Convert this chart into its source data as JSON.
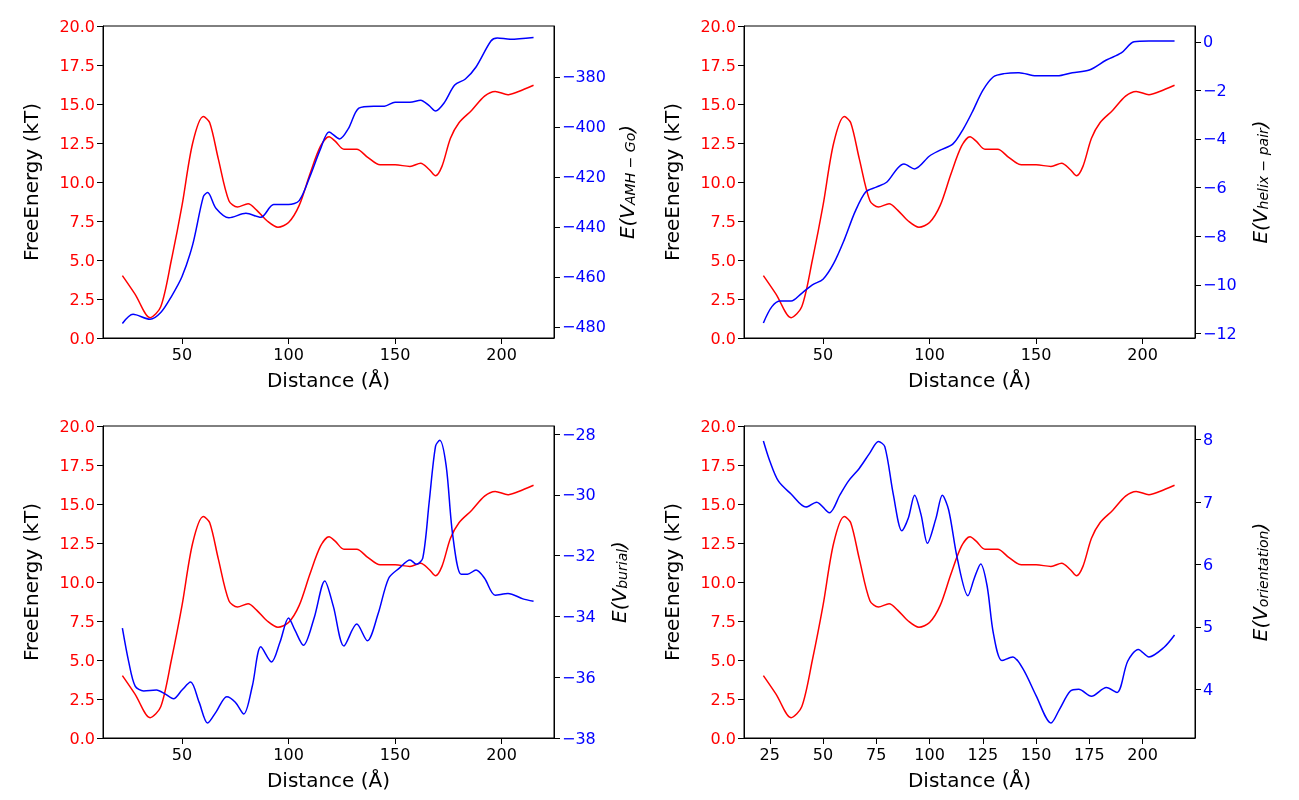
{
  "chart_data": [
    {
      "type": "line",
      "xlabel": "Distance (Å)",
      "ylabel": "FreeEnergy (kT)",
      "y2label": "E(V$_{AMH − Go}$)",
      "xlim": [
        12.9,
        224.6
      ],
      "xticks": [
        50,
        100,
        150,
        200
      ],
      "ylim": [
        0,
        20
      ],
      "yticks": [
        {
          "value": 0,
          "label": "0.0"
        },
        {
          "value": 2.5,
          "label": "2.5"
        },
        {
          "value": 5,
          "label": "5.0"
        },
        {
          "value": 7.5,
          "label": "7.5"
        },
        {
          "value": 10,
          "label": "10.0"
        },
        {
          "value": 12.5,
          "label": "12.5"
        },
        {
          "value": 15,
          "label": "15.0"
        },
        {
          "value": 17.5,
          "label": "17.5"
        },
        {
          "value": 20,
          "label": "20.0"
        }
      ],
      "y2lim": [
        -484.5,
        -359.6
      ],
      "y2ticks": [
        {
          "value": -480,
          "label": "−480"
        },
        {
          "value": -460,
          "label": "−460"
        },
        {
          "value": -440,
          "label": "−440"
        },
        {
          "value": -420,
          "label": "−420"
        },
        {
          "value": -400,
          "label": "−400"
        },
        {
          "value": -380,
          "label": "−380"
        }
      ],
      "series": [
        {
          "color": "#ff0000",
          "x": [
            22,
            28,
            35,
            40,
            45,
            50,
            55,
            60,
            63,
            67,
            72,
            76,
            81,
            85,
            90,
            95,
            100,
            105,
            110,
            115,
            119,
            122,
            126,
            132,
            137,
            143,
            150,
            157,
            162,
            166,
            169,
            172,
            176,
            180,
            186,
            192,
            197,
            203,
            208,
            215
          ],
          "values": [
            4.0,
            2.8,
            1.3,
            2.0,
            5.0,
            8.5,
            12.5,
            14.2,
            13.8,
            11.5,
            8.8,
            8.4,
            8.6,
            8.2,
            7.5,
            7.1,
            7.4,
            8.5,
            10.5,
            12.3,
            12.9,
            12.6,
            12.1,
            12.1,
            11.6,
            11.1,
            11.1,
            11.0,
            11.2,
            10.8,
            10.4,
            11.0,
            12.8,
            13.8,
            14.6,
            15.5,
            15.8,
            15.6,
            15.8,
            16.2
          ]
        },
        {
          "color": "#0000ff",
          "axis": "y2",
          "x": [
            22,
            27,
            35,
            40,
            45,
            50,
            55,
            60,
            62,
            66,
            72,
            80,
            87,
            93,
            100,
            105,
            110,
            115,
            119,
            124,
            128,
            133,
            140,
            145,
            150,
            157,
            162,
            166,
            169,
            173,
            178,
            183,
            188,
            195,
            198,
            204,
            215
          ],
          "values": [
            -478.7,
            -475,
            -477,
            -474.3,
            -467.9,
            -459.9,
            -447.1,
            -427.9,
            -426.3,
            -432.7,
            -436.4,
            -434.6,
            -436.2,
            -431.1,
            -431.1,
            -429.5,
            -419.9,
            -408.8,
            -402,
            -404.8,
            -400.8,
            -392.5,
            -391.7,
            -391.7,
            -390.1,
            -390.1,
            -389.3,
            -391.5,
            -393.6,
            -390.4,
            -383.2,
            -380.8,
            -376,
            -365.6,
            -364.4,
            -364.9,
            -364.2
          ]
        }
      ]
    },
    {
      "type": "line",
      "xlabel": "Distance (Å)",
      "ylabel": "FreeEnergy (kT)",
      "y2label": "E(V$_{helix − pair}$)",
      "xlim": [
        12.9,
        224.6
      ],
      "xticks": [
        50,
        100,
        150,
        200
      ],
      "ylim": [
        0,
        20
      ],
      "yticks": [
        {
          "value": 0,
          "label": "0.0"
        },
        {
          "value": 2.5,
          "label": "2.5"
        },
        {
          "value": 5,
          "label": "5.0"
        },
        {
          "value": 7.5,
          "label": "7.5"
        },
        {
          "value": 10,
          "label": "10.0"
        },
        {
          "value": 12.5,
          "label": "12.5"
        },
        {
          "value": 15,
          "label": "15.0"
        },
        {
          "value": 17.5,
          "label": "17.5"
        },
        {
          "value": 20,
          "label": "20.0"
        }
      ],
      "y2lim": [
        -12.19,
        0.65
      ],
      "y2ticks": [
        {
          "value": -12,
          "label": "−12"
        },
        {
          "value": -10,
          "label": "−10"
        },
        {
          "value": -8,
          "label": "−8"
        },
        {
          "value": -6,
          "label": "−6"
        },
        {
          "value": -4,
          "label": "−4"
        },
        {
          "value": -2,
          "label": "−2"
        },
        0
      ],
      "series": [
        {
          "color": "#ff0000",
          "x": [
            22,
            28,
            35,
            40,
            45,
            50,
            55,
            60,
            63,
            67,
            72,
            76,
            81,
            85,
            90,
            95,
            100,
            105,
            110,
            115,
            119,
            122,
            126,
            132,
            137,
            143,
            150,
            157,
            162,
            166,
            169,
            172,
            176,
            180,
            186,
            192,
            197,
            203,
            208,
            215
          ],
          "values": [
            4.0,
            2.8,
            1.3,
            2.0,
            5.0,
            8.5,
            12.5,
            14.2,
            13.8,
            11.5,
            8.8,
            8.4,
            8.6,
            8.2,
            7.5,
            7.1,
            7.4,
            8.5,
            10.5,
            12.3,
            12.9,
            12.6,
            12.1,
            12.1,
            11.6,
            11.1,
            11.1,
            11.0,
            11.2,
            10.8,
            10.4,
            11.0,
            12.8,
            13.8,
            14.6,
            15.5,
            15.8,
            15.6,
            15.8,
            16.2
          ]
        },
        {
          "color": "#0000ff",
          "axis": "y2",
          "x": [
            22,
            26,
            30,
            35,
            40,
            45,
            50,
            55,
            60,
            65,
            70,
            75,
            80,
            85,
            88,
            93,
            100,
            105,
            111,
            116,
            120,
            125,
            130,
            135,
            142,
            150,
            160,
            167,
            175,
            183,
            190,
            196,
            203,
            215
          ],
          "values": [
            -11.57,
            -10.9,
            -10.67,
            -10.67,
            -10.35,
            -10.0,
            -9.77,
            -9.12,
            -8.14,
            -7.0,
            -6.18,
            -5.98,
            -5.77,
            -5.2,
            -5.03,
            -5.23,
            -4.7,
            -4.46,
            -4.2,
            -3.56,
            -2.9,
            -2.0,
            -1.44,
            -1.31,
            -1.27,
            -1.4,
            -1.4,
            -1.27,
            -1.16,
            -0.75,
            -0.46,
            0,
            0.03,
            0.03
          ]
        }
      ]
    },
    {
      "type": "line",
      "xlabel": "Distance (Å)",
      "ylabel": "FreeEnergy (kT)",
      "y2label": "E(V$_{burial}$)",
      "xlim": [
        12.9,
        224.6
      ],
      "xticks": [
        50,
        100,
        150,
        200
      ],
      "ylim": [
        0,
        20
      ],
      "yticks": [
        {
          "value": 0,
          "label": "0.0"
        },
        {
          "value": 2.5,
          "label": "2.5"
        },
        {
          "value": 5,
          "label": "5.0"
        },
        {
          "value": 7.5,
          "label": "7.5"
        },
        {
          "value": 10,
          "label": "10.0"
        },
        {
          "value": 12.5,
          "label": "12.5"
        },
        {
          "value": 15,
          "label": "15.0"
        },
        {
          "value": 17.5,
          "label": "17.5"
        },
        {
          "value": 20,
          "label": "20.0"
        }
      ],
      "y2lim": [
        -38,
        -27.73
      ],
      "y2ticks": [
        {
          "value": -38,
          "label": "−38"
        },
        {
          "value": -36,
          "label": "−36"
        },
        {
          "value": -34,
          "label": "−34"
        },
        {
          "value": -32,
          "label": "−32"
        },
        {
          "value": -30,
          "label": "−30"
        },
        {
          "value": -28,
          "label": "−28"
        }
      ],
      "series": [
        {
          "color": "#ff0000",
          "x": [
            22,
            28,
            35,
            40,
            45,
            50,
            55,
            60,
            63,
            67,
            72,
            76,
            81,
            85,
            90,
            95,
            100,
            105,
            110,
            115,
            119,
            122,
            126,
            132,
            137,
            143,
            150,
            157,
            162,
            166,
            169,
            172,
            176,
            180,
            186,
            192,
            197,
            203,
            208,
            215
          ],
          "values": [
            4.0,
            2.8,
            1.3,
            2.0,
            5.0,
            8.5,
            12.5,
            14.2,
            13.8,
            11.5,
            8.8,
            8.4,
            8.6,
            8.2,
            7.5,
            7.1,
            7.4,
            8.5,
            10.5,
            12.3,
            12.9,
            12.6,
            12.1,
            12.1,
            11.6,
            11.1,
            11.1,
            11.0,
            11.2,
            10.8,
            10.4,
            11.0,
            12.8,
            13.8,
            14.6,
            15.5,
            15.8,
            15.6,
            15.8,
            16.2
          ]
        },
        {
          "color": "#0000ff",
          "axis": "y2",
          "x": [
            22,
            25,
            28,
            32,
            38,
            42,
            46,
            50,
            54,
            58,
            62,
            66,
            71,
            75,
            79,
            83,
            87,
            92,
            96,
            100,
            103,
            107,
            112,
            117,
            121,
            126,
            132,
            137,
            142,
            147,
            152,
            157,
            160,
            163,
            166,
            169,
            171,
            174,
            177,
            181,
            184,
            188,
            192,
            197,
            203,
            210,
            215
          ],
          "values": [
            -34.38,
            -35.5,
            -36.29,
            -36.45,
            -36.42,
            -36.55,
            -36.71,
            -36.42,
            -36.16,
            -36.82,
            -37.51,
            -37.14,
            -36.64,
            -36.82,
            -37.21,
            -36.29,
            -35.0,
            -35.5,
            -34.84,
            -34.05,
            -34.45,
            -34.95,
            -34.05,
            -32.83,
            -33.66,
            -34.97,
            -34.25,
            -34.8,
            -33.92,
            -32.74,
            -32.41,
            -32.14,
            -32.28,
            -32.08,
            -30.24,
            -28.39,
            -28.2,
            -29.05,
            -31.29,
            -32.61,
            -32.61,
            -32.47,
            -32.74,
            -33.3,
            -33.24,
            -33.42,
            -33.5
          ]
        }
      ]
    },
    {
      "type": "line",
      "xlabel": "Distance (Å)",
      "ylabel": "FreeEnergy (kT)",
      "y2label": "E(V$_{orientation}$)",
      "xlim": [
        12.9,
        224.6
      ],
      "xticks": [
        25,
        50,
        75,
        100,
        125,
        150,
        175,
        200
      ],
      "ylim": [
        0,
        20
      ],
      "yticks": [
        {
          "value": 0,
          "label": "0.0"
        },
        {
          "value": 2.5,
          "label": "2.5"
        },
        {
          "value": 5,
          "label": "5.0"
        },
        {
          "value": 7.5,
          "label": "7.5"
        },
        {
          "value": 10,
          "label": "10.0"
        },
        {
          "value": 12.5,
          "label": "12.5"
        },
        {
          "value": 15,
          "label": "15.0"
        },
        {
          "value": 17.5,
          "label": "17.5"
        },
        {
          "value": 20,
          "label": "20.0"
        }
      ],
      "y2lim": [
        3.22,
        8.22
      ],
      "y2ticks": [
        4,
        5,
        6,
        7,
        8
      ],
      "series": [
        {
          "color": "#ff0000",
          "x": [
            22,
            28,
            35,
            40,
            45,
            50,
            55,
            60,
            63,
            67,
            72,
            76,
            81,
            85,
            90,
            95,
            100,
            105,
            110,
            115,
            119,
            122,
            126,
            132,
            137,
            143,
            150,
            157,
            162,
            166,
            169,
            172,
            176,
            180,
            186,
            192,
            197,
            203,
            208,
            215
          ],
          "values": [
            4.0,
            2.8,
            1.3,
            2.0,
            5.0,
            8.5,
            12.5,
            14.2,
            13.8,
            11.5,
            8.8,
            8.4,
            8.6,
            8.2,
            7.5,
            7.1,
            7.4,
            8.5,
            10.5,
            12.3,
            12.9,
            12.6,
            12.1,
            12.1,
            11.6,
            11.1,
            11.1,
            11.0,
            11.2,
            10.8,
            10.4,
            11.0,
            12.8,
            13.8,
            14.6,
            15.5,
            15.8,
            15.6,
            15.8,
            16.2
          ]
        },
        {
          "color": "#0000ff",
          "axis": "y2",
          "x": [
            22,
            25,
            29,
            35,
            42,
            47,
            53,
            58,
            62,
            67,
            72,
            76,
            79,
            83,
            87,
            90,
            93,
            96,
            99,
            103,
            106,
            109,
            113,
            118,
            121,
            124,
            127,
            130,
            134,
            139,
            144,
            150,
            157,
            161,
            166,
            170,
            176,
            183,
            188,
            193,
            198,
            203,
            210,
            215
          ],
          "values": [
            7.98,
            7.66,
            7.34,
            7.13,
            6.92,
            7.0,
            6.83,
            7.12,
            7.34,
            7.54,
            7.79,
            7.97,
            7.89,
            7.12,
            6.54,
            6.74,
            7.11,
            6.8,
            6.34,
            6.74,
            7.11,
            6.87,
            6.1,
            5.5,
            5.78,
            6.01,
            5.66,
            4.89,
            4.46,
            4.52,
            4.32,
            3.9,
            3.46,
            3.68,
            3.97,
            4.0,
            3.89,
            4.03,
            3.95,
            4.45,
            4.64,
            4.52,
            4.67,
            4.87
          ]
        }
      ]
    }
  ]
}
